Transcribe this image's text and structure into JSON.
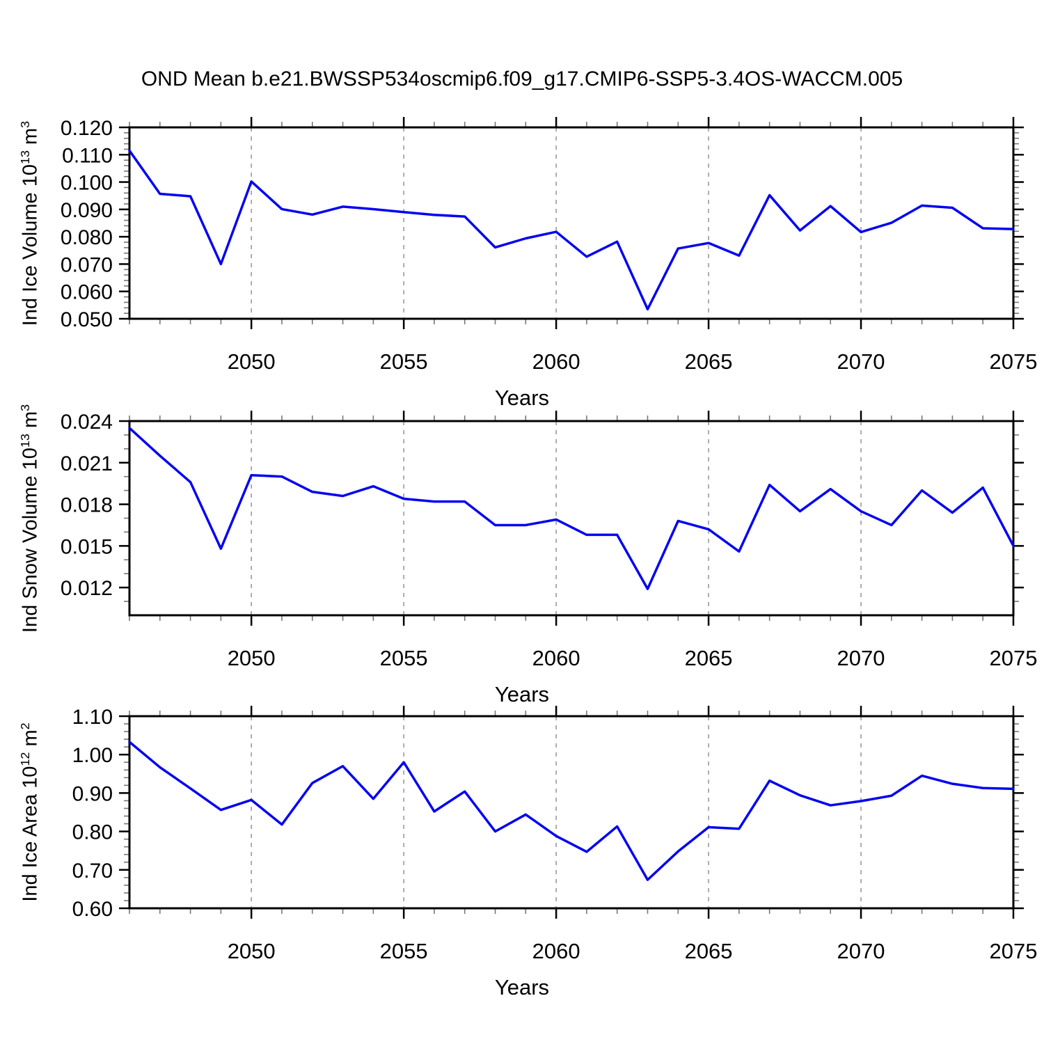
{
  "title": "OND Mean b.e21.BWSSP534oscmip6.f09_g17.CMIP6-SSP5-3.4OS-WACCM.005",
  "line_color": "#0202f2",
  "grid_color": "#9a9a9a",
  "axis_color": "#000000",
  "minor_tick_color": "#777777",
  "charts": [
    {
      "name": "ice-volume",
      "xlabel": "Years",
      "ylabel": {
        "pre": "Ind Ice Volume 10",
        "sup1": "13",
        "mid": " m",
        "sup2": "3"
      },
      "chart_data": {
        "type": "line",
        "title": "",
        "x": [
          2046,
          2047,
          2048,
          2049,
          2050,
          2051,
          2052,
          2053,
          2054,
          2055,
          2056,
          2057,
          2058,
          2059,
          2060,
          2061,
          2062,
          2063,
          2064,
          2065,
          2066,
          2067,
          2068,
          2069,
          2070,
          2071,
          2072,
          2073,
          2074,
          2075
        ],
        "values": [
          0.1115,
          0.0957,
          0.0948,
          0.07,
          0.1002,
          0.0901,
          0.0881,
          0.091,
          0.0901,
          0.089,
          0.088,
          0.0874,
          0.0761,
          0.0794,
          0.0818,
          0.0727,
          0.0782,
          0.0535,
          0.0757,
          0.0777,
          0.0731,
          0.0952,
          0.0823,
          0.0912,
          0.0817,
          0.0851,
          0.0914,
          0.0906,
          0.0831,
          0.0828
        ],
        "xlim": [
          2046,
          2075
        ],
        "ylim": [
          0.05,
          0.12
        ],
        "yticks": [
          {
            "v": 0.05,
            "label": "0.050"
          },
          {
            "v": 0.06,
            "label": "0.060"
          },
          {
            "v": 0.07,
            "label": "0.070"
          },
          {
            "v": 0.08,
            "label": "0.080"
          },
          {
            "v": 0.09,
            "label": "0.090"
          },
          {
            "v": 0.1,
            "label": "0.100"
          },
          {
            "v": 0.11,
            "label": "0.110"
          },
          {
            "v": 0.12,
            "label": "0.120"
          }
        ],
        "yminor_step": 0.002,
        "xmajor": [
          2050,
          2055,
          2060,
          2065,
          2070,
          2075
        ],
        "xmajor_labels": [
          "2050",
          "2055",
          "2060",
          "2065",
          "2070",
          "2075"
        ],
        "grid_years": [
          2050,
          2055,
          2060,
          2065,
          2070
        ],
        "grid_on": true,
        "legend": null
      }
    },
    {
      "name": "snow-volume",
      "xlabel": "Years",
      "ylabel": {
        "pre": "Ind Snow Volume 10",
        "sup1": "13",
        "mid": " m",
        "sup2": "3"
      },
      "chart_data": {
        "type": "line",
        "title": "",
        "x": [
          2046,
          2047,
          2048,
          2049,
          2050,
          2051,
          2052,
          2053,
          2054,
          2055,
          2056,
          2057,
          2058,
          2059,
          2060,
          2061,
          2062,
          2063,
          2064,
          2065,
          2066,
          2067,
          2068,
          2069,
          2070,
          2071,
          2072,
          2073,
          2074,
          2075
        ],
        "values": [
          0.0235,
          0.0215,
          0.0196,
          0.0148,
          0.0201,
          0.02,
          0.0189,
          0.0186,
          0.0193,
          0.0184,
          0.0182,
          0.0182,
          0.0165,
          0.0165,
          0.0169,
          0.0158,
          0.0158,
          0.0119,
          0.0168,
          0.0162,
          0.0146,
          0.0194,
          0.0175,
          0.0191,
          0.0175,
          0.0165,
          0.019,
          0.0174,
          0.0192,
          0.015
        ],
        "xlim": [
          2046,
          2075
        ],
        "ylim": [
          0.01,
          0.024
        ],
        "yticks": [
          {
            "v": 0.012,
            "label": "0.012"
          },
          {
            "v": 0.015,
            "label": "0.015"
          },
          {
            "v": 0.018,
            "label": "0.018"
          },
          {
            "v": 0.021,
            "label": "0.021"
          },
          {
            "v": 0.024,
            "label": "0.024"
          }
        ],
        "yminor_step": 0.001,
        "xmajor": [
          2050,
          2055,
          2060,
          2065,
          2070,
          2075
        ],
        "xmajor_labels": [
          "2050",
          "2055",
          "2060",
          "2065",
          "2070",
          "2075"
        ],
        "grid_years": [
          2050,
          2055,
          2060,
          2065,
          2070
        ],
        "grid_on": true,
        "legend": null
      }
    },
    {
      "name": "ice-area",
      "xlabel": "Years",
      "ylabel": {
        "pre": "Ind Ice Area 10",
        "sup1": "12",
        "mid": " m",
        "sup2": "2"
      },
      "chart_data": {
        "type": "line",
        "title": "",
        "x": [
          2046,
          2047,
          2048,
          2049,
          2050,
          2051,
          2052,
          2053,
          2054,
          2055,
          2056,
          2057,
          2058,
          2059,
          2060,
          2061,
          2062,
          2063,
          2064,
          2065,
          2066,
          2067,
          2068,
          2069,
          2070,
          2071,
          2072,
          2073,
          2074,
          2075
        ],
        "values": [
          1.033,
          0.967,
          0.912,
          0.856,
          0.882,
          0.818,
          0.926,
          0.97,
          0.885,
          0.98,
          0.852,
          0.904,
          0.8,
          0.844,
          0.788,
          0.747,
          0.813,
          0.674,
          0.748,
          0.811,
          0.807,
          0.932,
          0.894,
          0.868,
          0.879,
          0.893,
          0.945,
          0.924,
          0.913,
          0.911
        ],
        "xlim": [
          2046,
          2075
        ],
        "ylim": [
          0.6,
          1.1
        ],
        "yticks": [
          {
            "v": 0.6,
            "label": "0.60"
          },
          {
            "v": 0.7,
            "label": "0.70"
          },
          {
            "v": 0.8,
            "label": "0.80"
          },
          {
            "v": 0.9,
            "label": "0.90"
          },
          {
            "v": 1.0,
            "label": "1.00"
          },
          {
            "v": 1.1,
            "label": "1.10"
          }
        ],
        "yminor_step": 0.02,
        "xmajor": [
          2050,
          2055,
          2060,
          2065,
          2070,
          2075
        ],
        "xmajor_labels": [
          "2050",
          "2055",
          "2060",
          "2065",
          "2070",
          "2075"
        ],
        "grid_years": [
          2050,
          2055,
          2060,
          2065,
          2070
        ],
        "grid_on": true,
        "legend": null
      }
    }
  ]
}
